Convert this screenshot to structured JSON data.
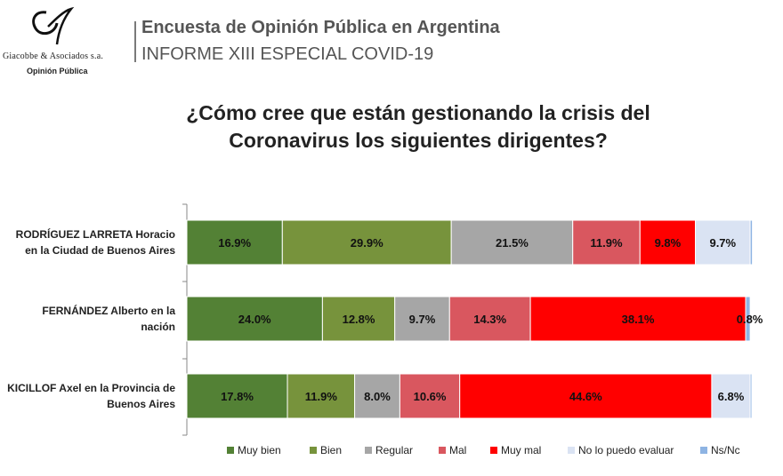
{
  "logo": {
    "company": "Giacobbe & Asociados s.a.",
    "subtitle": "Opinión Pública"
  },
  "header": {
    "title": "Encuesta de Opinión Pública en Argentina",
    "subtitle": "INFORME XIII ESPECIAL COVID-19"
  },
  "question": {
    "line1": "¿Cómo cree que están gestionando la crisis del",
    "line2": "Coronavirus los siguientes dirigentes?"
  },
  "chart_data": {
    "type": "bar",
    "orientation": "horizontal",
    "stacked": true,
    "normalized": true,
    "title": "¿Cómo cree que están gestionando la crisis del Coronavirus los siguientes dirigentes?",
    "categories": [
      [
        "RODRÍGUEZ LARRETA Horacio",
        "en la Ciudad de Buenos Aires"
      ],
      [
        "FERNÁNDEZ Alberto en la",
        "nación"
      ],
      [
        "KICILLOF Axel en la Provincia de",
        "Buenos Aires"
      ]
    ],
    "series": [
      {
        "name": "Muy bien",
        "color": "#538135",
        "values": [
          16.9,
          24.0,
          17.8
        ],
        "labels": [
          "16.9%",
          "24.0%",
          "17.8%"
        ]
      },
      {
        "name": "Bien",
        "color": "#77933c",
        "values": [
          29.9,
          12.8,
          11.9
        ],
        "labels": [
          "29.9%",
          "12.8%",
          "11.9%"
        ]
      },
      {
        "name": "Regular",
        "color": "#a6a6a6",
        "values": [
          21.5,
          9.7,
          8.0
        ],
        "labels": [
          "21.5%",
          "9.7%",
          "8.0%"
        ]
      },
      {
        "name": "Mal",
        "color": "#d9575f",
        "values": [
          11.9,
          14.3,
          10.6
        ],
        "labels": [
          "11.9%",
          "14.3%",
          "10.6%"
        ]
      },
      {
        "name": "Muy mal",
        "color": "#ff0000",
        "values": [
          9.8,
          38.1,
          44.6
        ],
        "labels": [
          "9.8%",
          "38.1%",
          "44.6%"
        ]
      },
      {
        "name": "No lo puedo evaluar",
        "color": "#dae3f3",
        "values": [
          9.7,
          0.0,
          6.8
        ],
        "labels": [
          "9.7%",
          "",
          "6.8%"
        ]
      },
      {
        "name": "Ns/Nc",
        "color": "#8eb4e3",
        "values": [
          0.4,
          0.8,
          0.3
        ],
        "labels": [
          "",
          "0.8%",
          ""
        ]
      }
    ],
    "legend": "bottom",
    "grid": false,
    "xlim": [
      0,
      100
    ]
  }
}
